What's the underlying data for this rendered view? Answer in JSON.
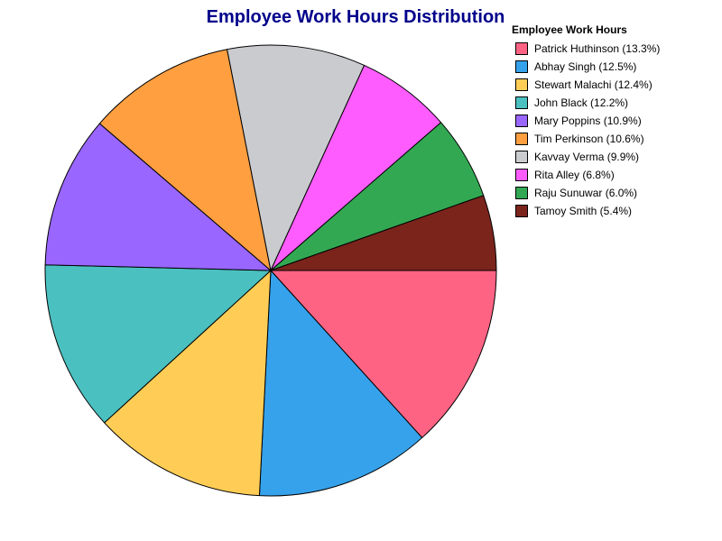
{
  "chart_data": {
    "type": "pie",
    "title": "Employee Work Hours Distribution",
    "legend_title": "Employee Work Hours",
    "legend_position": "top-right",
    "start_angle_deg": 0,
    "direction": "clockwise",
    "slices": [
      {
        "label": "Patrick Huthinson",
        "value": 13.3,
        "legend": "Patrick Huthinson (13.3%)",
        "color": "#ff6384"
      },
      {
        "label": "Abhay Singh",
        "value": 12.5,
        "legend": "Abhay Singh (12.5%)",
        "color": "#36a2eb"
      },
      {
        "label": "Stewart Malachi",
        "value": 12.4,
        "legend": "Stewart Malachi (12.4%)",
        "color": "#ffcd56"
      },
      {
        "label": "John Black",
        "value": 12.2,
        "legend": "John Black (12.2%)",
        "color": "#4bc0c0"
      },
      {
        "label": "Mary Poppins",
        "value": 10.9,
        "legend": "Mary Poppins (10.9%)",
        "color": "#9966ff"
      },
      {
        "label": "Tim Perkinson",
        "value": 10.6,
        "legend": "Tim Perkinson (10.6%)",
        "color": "#ff9f40"
      },
      {
        "label": "Kavvay Verma",
        "value": 9.9,
        "legend": "Kavvay Verma (9.9%)",
        "color": "#c9cbcf"
      },
      {
        "label": "Rita Alley",
        "value": 6.8,
        "legend": "Rita Alley (6.8%)",
        "color": "#ff5cff"
      },
      {
        "label": "Raju Sunuwar",
        "value": 6.0,
        "legend": "Raju Sunuwar (6.0%)",
        "color": "#33a853"
      },
      {
        "label": "Tamoy Smith",
        "value": 5.4,
        "legend": "Tamoy Smith (5.4%)",
        "color": "#7b241c"
      }
    ]
  }
}
